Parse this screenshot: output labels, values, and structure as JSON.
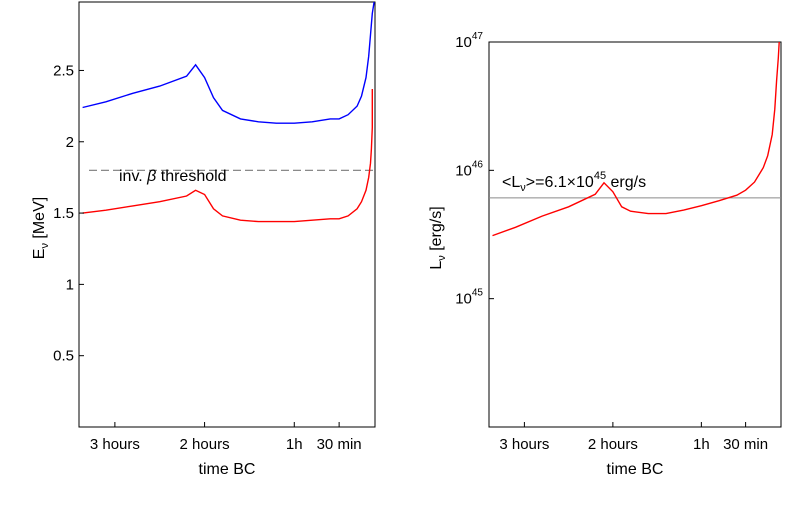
{
  "chart_data": [
    {
      "type": "line",
      "xlabel": "time BC",
      "ylabel_main": "E",
      "ylabel_sub": "ν",
      "ylabel_unit": " [MeV]",
      "xlim": [
        -3.4,
        -0.1
      ],
      "ylim": [
        0,
        2.98
      ],
      "xticks": [
        {
          "value": -3.0,
          "label": "3 hours"
        },
        {
          "value": -2.0,
          "label": "2 hours"
        },
        {
          "value": -1.0,
          "label": "1h"
        },
        {
          "value": -0.5,
          "label": "30 min"
        }
      ],
      "yticks": [
        {
          "value": 0.5,
          "label": "0.5"
        },
        {
          "value": 1.0,
          "label": "1"
        },
        {
          "value": 1.5,
          "label": "1.5"
        },
        {
          "value": 2.0,
          "label": "2"
        },
        {
          "value": 2.5,
          "label": "2.5"
        }
      ],
      "threshold": {
        "value": 1.8,
        "label_pre": "inv. ",
        "label_sym": "β",
        "label_post": " threshold",
        "color": "#7a7a7a"
      },
      "series": [
        {
          "color": "#0000ff",
          "x": [
            -3.36,
            -3.1,
            -2.8,
            -2.5,
            -2.2,
            -2.1,
            -2.0,
            -1.9,
            -1.8,
            -1.6,
            -1.4,
            -1.2,
            -1.0,
            -0.8,
            -0.6,
            -0.5,
            -0.4,
            -0.3,
            -0.25,
            -0.2,
            -0.17,
            -0.15,
            -0.13,
            -0.11
          ],
          "y": [
            2.24,
            2.28,
            2.34,
            2.39,
            2.46,
            2.54,
            2.45,
            2.31,
            2.22,
            2.16,
            2.14,
            2.13,
            2.13,
            2.14,
            2.16,
            2.16,
            2.19,
            2.25,
            2.32,
            2.45,
            2.6,
            2.75,
            2.9,
            3.0
          ]
        },
        {
          "color": "#ff0000",
          "x": [
            -3.36,
            -3.1,
            -2.8,
            -2.5,
            -2.2,
            -2.1,
            -2.0,
            -1.9,
            -1.8,
            -1.6,
            -1.4,
            -1.2,
            -1.0,
            -0.8,
            -0.6,
            -0.5,
            -0.4,
            -0.3,
            -0.25,
            -0.2,
            -0.17,
            -0.15,
            -0.14,
            -0.13,
            -0.13
          ],
          "y": [
            1.5,
            1.52,
            1.55,
            1.58,
            1.62,
            1.66,
            1.63,
            1.53,
            1.48,
            1.45,
            1.44,
            1.44,
            1.44,
            1.45,
            1.46,
            1.46,
            1.48,
            1.53,
            1.58,
            1.66,
            1.75,
            1.85,
            1.95,
            2.1,
            2.37
          ]
        }
      ]
    },
    {
      "type": "line",
      "xlabel": "time BC",
      "ylabel_main": "L",
      "ylabel_sub": "ν",
      "ylabel_unit": " [erg/s]",
      "yscale": "log",
      "xlim": [
        -3.4,
        -0.1
      ],
      "ylim": [
        1e+44,
        1e+47
      ],
      "xticks": [
        {
          "value": -3.0,
          "label": "3 hours"
        },
        {
          "value": -2.0,
          "label": "2 hours"
        },
        {
          "value": -1.0,
          "label": "1h"
        },
        {
          "value": -0.5,
          "label": "30 min"
        }
      ],
      "yticks": [
        {
          "value": 1e+45,
          "base": "10",
          "exp": "45"
        },
        {
          "value": 1e+46,
          "base": "10",
          "exp": "46"
        },
        {
          "value": 1e+47,
          "base": "10",
          "exp": "47"
        }
      ],
      "mean_line": {
        "value": 6.1e+45,
        "color": "#8a8a8a",
        "label_open": "<L",
        "label_sub": "ν",
        "label_mid": ">=6.1×10",
        "label_exp": "45",
        "label_unit": " erg/s"
      },
      "series": [
        {
          "color": "#ff0000",
          "x": [
            -3.36,
            -3.1,
            -2.8,
            -2.5,
            -2.2,
            -2.1,
            -2.0,
            -1.9,
            -1.8,
            -1.6,
            -1.4,
            -1.2,
            -1.0,
            -0.8,
            -0.6,
            -0.5,
            -0.4,
            -0.3,
            -0.25,
            -0.2,
            -0.17,
            -0.15,
            -0.13,
            -0.12
          ],
          "y": [
            3.1e+45,
            3.6e+45,
            4.4e+45,
            5.2e+45,
            6.5e+45,
            8e+45,
            6.8e+45,
            5.2e+45,
            4.8e+45,
            4.6e+45,
            4.6e+45,
            4.9e+45,
            5.3e+45,
            5.8e+45,
            6.4e+45,
            7e+45,
            8.1e+45,
            1.05e+46,
            1.3e+46,
            1.9e+46,
            3e+46,
            5e+46,
            7.5e+46,
            1e+47
          ]
        }
      ]
    }
  ]
}
